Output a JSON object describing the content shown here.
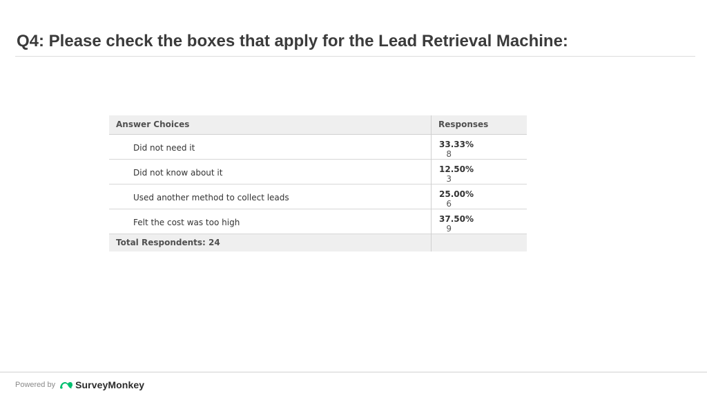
{
  "slide": {
    "title": "Q4: Please check the boxes that apply for the Lead Retrieval Machine:"
  },
  "table": {
    "headers": {
      "choices": "Answer Choices",
      "responses": "Responses"
    },
    "rows": [
      {
        "choice": "Did not need it",
        "percent": "33.33%",
        "count": "8"
      },
      {
        "choice": "Did not know about it",
        "percent": "12.50%",
        "count": "3"
      },
      {
        "choice": "Used another method to collect leads",
        "percent": "25.00%",
        "count": "6"
      },
      {
        "choice": "Felt the cost was too high",
        "percent": "37.50%",
        "count": "9"
      }
    ],
    "total": "Total Respondents: 24"
  },
  "footer": {
    "powered_by": "Powered by",
    "brand": "SurveyMonkey",
    "brand_icon": "surveymonkey-logo-icon",
    "brand_color": "#00bf6f"
  }
}
